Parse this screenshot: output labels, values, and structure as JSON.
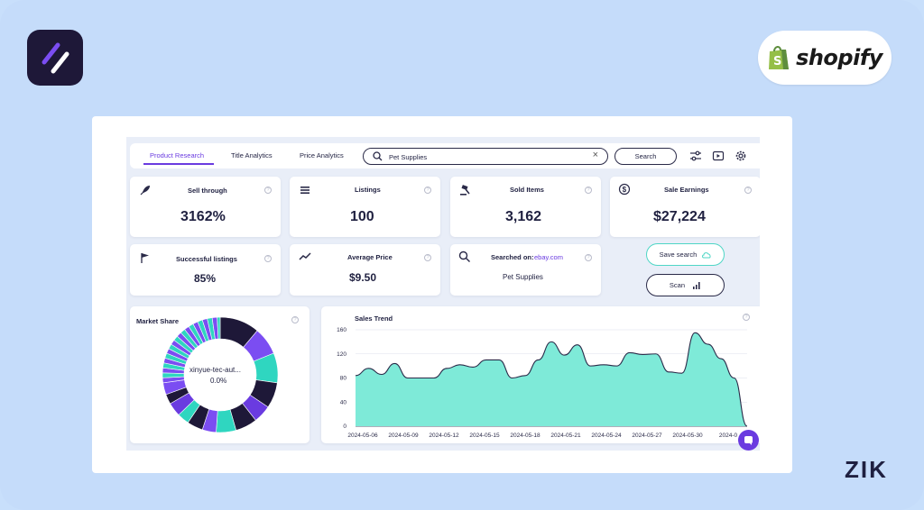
{
  "brand": {
    "shopify_word": "shopify",
    "zik_word": "ZIK",
    "accent": "#6a3be0",
    "teal": "#7eead8"
  },
  "tabs": [
    {
      "label": "Product Research",
      "active": true
    },
    {
      "label": "Title Analytics",
      "active": false
    },
    {
      "label": "Price Analytics",
      "active": false
    }
  ],
  "search": {
    "value": "Pet Supplies",
    "button_label": "Search"
  },
  "toolbar_icons": [
    "filters-icon",
    "video-icon",
    "settings-icon"
  ],
  "stats": {
    "sell_through": {
      "label": "Sell through",
      "value": "3162%"
    },
    "listings": {
      "label": "Listings",
      "value": "100"
    },
    "sold_items": {
      "label": "Sold Items",
      "value": "3,162"
    },
    "sale_earnings": {
      "label": "Sale Earnings",
      "value": "$27,224"
    },
    "successful_listings": {
      "label": "Successful listings",
      "value": "85%"
    },
    "average_price": {
      "label": "Average Price",
      "value": "$9.50"
    },
    "searched_on": {
      "label": "Searched on:",
      "site": "ebay.com",
      "value": "Pet Supplies"
    }
  },
  "actions": {
    "save_search": "Save search",
    "scan": "Scan"
  },
  "market_share": {
    "title": "Market Share",
    "center_name": "xinyue-tec-aut...",
    "center_value": "0.0%"
  },
  "chart_data": {
    "type": "area",
    "title": "Sales Trend",
    "x_ticks": [
      "2024-05-06",
      "2024-05-09",
      "2024-05-12",
      "2024-05-15",
      "2024-05-18",
      "2024-05-21",
      "2024-05-24",
      "2024-05-27",
      "2024-05-30",
      "2024-0"
    ],
    "y_ticks": [
      0,
      40,
      80,
      120,
      160
    ],
    "ylim": [
      0,
      160
    ],
    "grid": true,
    "color": "#7eead8",
    "values": [
      84,
      96,
      86,
      104,
      80,
      80,
      80,
      96,
      102,
      98,
      110,
      110,
      80,
      84,
      110,
      140,
      118,
      135,
      100,
      102,
      100,
      122,
      119,
      120,
      90,
      88,
      155,
      136,
      112,
      80,
      0
    ]
  }
}
